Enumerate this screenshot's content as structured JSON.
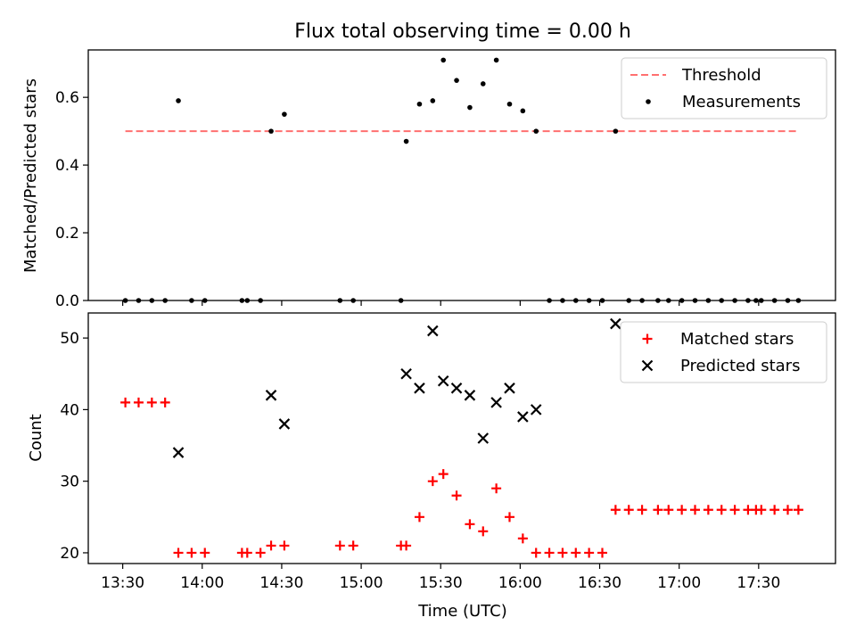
{
  "figure": {
    "title": "Flux total observing time = 0.00 h"
  },
  "chart_data": [
    {
      "type": "scatter",
      "title": "Flux total observing time = 0.00 h",
      "xlabel": "",
      "ylabel": "Matched/Predicted stars",
      "xlim": [
        "13:17",
        "17:59"
      ],
      "ylim": [
        0,
        0.74
      ],
      "yticks": [
        0.0,
        0.2,
        0.4,
        0.6
      ],
      "ytick_labels": [
        "0.0",
        "0.2",
        "0.4",
        "0.6"
      ],
      "legend_position": "top-right",
      "threshold": {
        "name": "Threshold",
        "y": 0.5,
        "x_start": "13:31",
        "x_end": "17:45",
        "color": "#ff7070",
        "style": "dashed"
      },
      "series": [
        {
          "name": "Measurements",
          "marker": "dot",
          "color": "#000000",
          "points": [
            [
              "13:31",
              0
            ],
            [
              "13:36",
              0
            ],
            [
              "13:41",
              0
            ],
            [
              "13:46",
              0
            ],
            [
              "13:51",
              0.59
            ],
            [
              "13:56",
              0
            ],
            [
              "14:01",
              0
            ],
            [
              "14:15",
              0
            ],
            [
              "14:17",
              0
            ],
            [
              "14:22",
              0
            ],
            [
              "14:26",
              0.5
            ],
            [
              "14:31",
              0.55
            ],
            [
              "14:52",
              0
            ],
            [
              "14:57",
              0
            ],
            [
              "15:15",
              0
            ],
            [
              "15:17",
              0.47
            ],
            [
              "15:22",
              0.58
            ],
            [
              "15:27",
              0.59
            ],
            [
              "15:31",
              0.71
            ],
            [
              "15:36",
              0.65
            ],
            [
              "15:41",
              0.57
            ],
            [
              "15:46",
              0.64
            ],
            [
              "15:51",
              0.71
            ],
            [
              "15:56",
              0.58
            ],
            [
              "16:01",
              0.56
            ],
            [
              "16:06",
              0.5
            ],
            [
              "16:11",
              0
            ],
            [
              "16:16",
              0
            ],
            [
              "16:21",
              0
            ],
            [
              "16:26",
              0
            ],
            [
              "16:31",
              0
            ],
            [
              "16:36",
              0.5
            ],
            [
              "16:41",
              0
            ],
            [
              "16:46",
              0
            ],
            [
              "16:52",
              0
            ],
            [
              "16:56",
              0
            ],
            [
              "17:01",
              0
            ],
            [
              "17:06",
              0
            ],
            [
              "17:11",
              0
            ],
            [
              "17:16",
              0
            ],
            [
              "17:21",
              0
            ],
            [
              "17:26",
              0
            ],
            [
              "17:29",
              0
            ],
            [
              "17:31",
              0
            ],
            [
              "17:36",
              0
            ],
            [
              "17:41",
              0
            ],
            [
              "17:45",
              0
            ]
          ]
        }
      ]
    },
    {
      "type": "scatter",
      "title": "",
      "xlabel": "Time (UTC)",
      "ylabel": "Count",
      "xlim": [
        "13:17",
        "17:59"
      ],
      "ylim": [
        18.5,
        53.5
      ],
      "yticks": [
        20,
        30,
        40,
        50
      ],
      "ytick_labels": [
        "20",
        "30",
        "40",
        "50"
      ],
      "xticks": [
        "13:30",
        "14:00",
        "14:30",
        "15:00",
        "15:30",
        "16:00",
        "16:30",
        "17:00",
        "17:30"
      ],
      "xtick_labels": [
        "13:30",
        "14:00",
        "14:30",
        "15:00",
        "15:30",
        "16:00",
        "16:30",
        "17:00",
        "17:30"
      ],
      "legend_position": "top-right",
      "series": [
        {
          "name": "Matched stars",
          "marker": "plus",
          "color": "#ff0000",
          "points": [
            [
              "13:31",
              41
            ],
            [
              "13:36",
              41
            ],
            [
              "13:41",
              41
            ],
            [
              "13:46",
              41
            ],
            [
              "13:51",
              20
            ],
            [
              "13:56",
              20
            ],
            [
              "14:01",
              20
            ],
            [
              "14:15",
              20
            ],
            [
              "14:17",
              20
            ],
            [
              "14:22",
              20
            ],
            [
              "14:26",
              21
            ],
            [
              "14:31",
              21
            ],
            [
              "14:52",
              21
            ],
            [
              "14:57",
              21
            ],
            [
              "15:15",
              21
            ],
            [
              "15:17",
              21
            ],
            [
              "15:22",
              25
            ],
            [
              "15:27",
              30
            ],
            [
              "15:31",
              31
            ],
            [
              "15:36",
              28
            ],
            [
              "15:41",
              24
            ],
            [
              "15:46",
              23
            ],
            [
              "15:51",
              29
            ],
            [
              "15:56",
              25
            ],
            [
              "16:01",
              22
            ],
            [
              "16:06",
              20
            ],
            [
              "16:11",
              20
            ],
            [
              "16:16",
              20
            ],
            [
              "16:21",
              20
            ],
            [
              "16:26",
              20
            ],
            [
              "16:31",
              20
            ],
            [
              "16:36",
              26
            ],
            [
              "16:41",
              26
            ],
            [
              "16:46",
              26
            ],
            [
              "16:52",
              26
            ],
            [
              "16:56",
              26
            ],
            [
              "17:01",
              26
            ],
            [
              "17:06",
              26
            ],
            [
              "17:11",
              26
            ],
            [
              "17:16",
              26
            ],
            [
              "17:21",
              26
            ],
            [
              "17:26",
              26
            ],
            [
              "17:29",
              26
            ],
            [
              "17:31",
              26
            ],
            [
              "17:36",
              26
            ],
            [
              "17:41",
              26
            ],
            [
              "17:45",
              26
            ]
          ]
        },
        {
          "name": "Predicted stars",
          "marker": "x",
          "color": "#000000",
          "points": [
            [
              "13:51",
              34
            ],
            [
              "14:26",
              42
            ],
            [
              "14:31",
              38
            ],
            [
              "15:17",
              45
            ],
            [
              "15:22",
              43
            ],
            [
              "15:27",
              51
            ],
            [
              "15:31",
              44
            ],
            [
              "15:36",
              43
            ],
            [
              "15:41",
              42
            ],
            [
              "15:46",
              36
            ],
            [
              "15:51",
              41
            ],
            [
              "15:56",
              43
            ],
            [
              "16:01",
              39
            ],
            [
              "16:06",
              40
            ],
            [
              "16:36",
              52
            ]
          ]
        }
      ]
    }
  ]
}
